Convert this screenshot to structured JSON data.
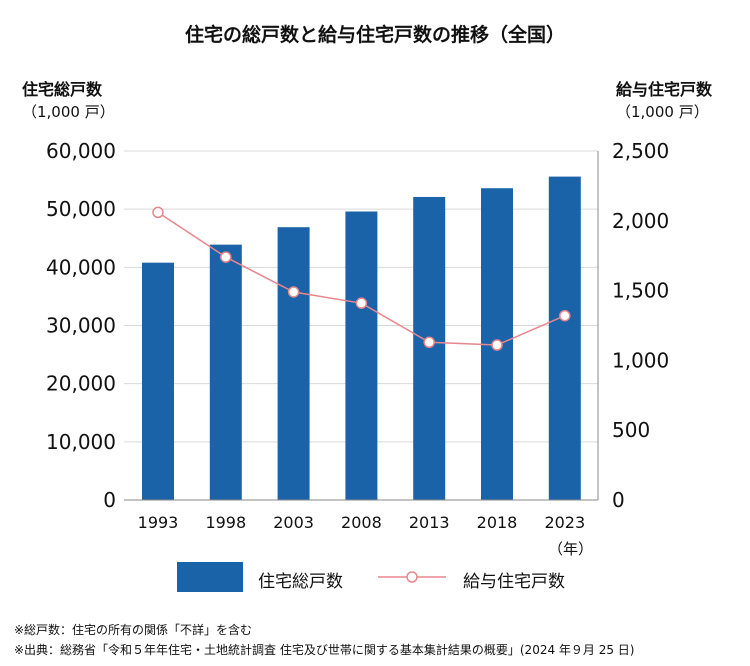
{
  "title": "住宅の総戸数と給与住宅戸数の推移（全国）",
  "colors": {
    "bar": "#1a63a8",
    "line": "#e8868c",
    "grid": "#d9d9d9",
    "axis": "#888888"
  },
  "chart_data": {
    "type": "bar",
    "categories": [
      "1993",
      "1998",
      "2003",
      "2008",
      "2013",
      "2018",
      "2023"
    ],
    "x_suffix": "（年）",
    "series": [
      {
        "name": "住宅総戸数",
        "type": "bar",
        "axis": "left",
        "values": [
          40800,
          43900,
          46900,
          49600,
          52100,
          53600,
          55600
        ]
      },
      {
        "name": "給与住宅戸数",
        "type": "line",
        "axis": "right",
        "values": [
          2060,
          1740,
          1490,
          1410,
          1130,
          1110,
          1320
        ]
      }
    ],
    "y_left": {
      "label": "住宅総戸数",
      "unit": "（1,000 戸）",
      "min": 0,
      "max": 60000,
      "ticks": [
        0,
        10000,
        20000,
        30000,
        40000,
        50000,
        60000
      ],
      "tick_labels": [
        "0",
        "10,000",
        "20,000",
        "30,000",
        "40,000",
        "50,000",
        "60,000"
      ]
    },
    "y_right": {
      "label": "給与住宅戸数",
      "unit": "（1,000 戸）",
      "min": 0,
      "max": 2500,
      "ticks": [
        0,
        500,
        1000,
        1500,
        2000,
        2500
      ],
      "tick_labels": [
        "0",
        "500",
        "1,000",
        "1,500",
        "2,000",
        "2,500"
      ]
    },
    "grid": true,
    "legend_position": "bottom"
  },
  "notes": [
    "※総戸数：住宅の所有の関係「不詳」を含む",
    "※出典：総務省「令和５年年住宅・土地統計調査 住宅及び世帯に関する基本集計結果の概要」(2024 年９月 25 日)"
  ]
}
